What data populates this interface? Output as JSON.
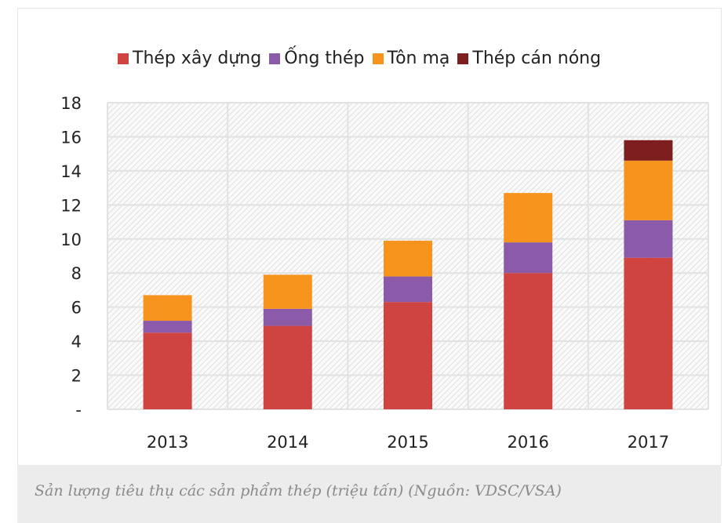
{
  "chart_data": {
    "type": "bar",
    "stacked": true,
    "categories": [
      "2013",
      "2014",
      "2015",
      "2016",
      "2017"
    ],
    "series": [
      {
        "name": "Thép xây dựng",
        "color": "#cf4441",
        "values": [
          4.5,
          4.9,
          6.3,
          8.0,
          8.9
        ]
      },
      {
        "name": "Ống thép",
        "color": "#8b5aa8",
        "values": [
          0.7,
          1.0,
          1.5,
          1.8,
          2.2
        ]
      },
      {
        "name": "Tôn mạ",
        "color": "#f7941d",
        "values": [
          1.5,
          2.0,
          2.1,
          2.9,
          3.5
        ]
      },
      {
        "name": "Thép cán nóng",
        "color": "#7e1f1f",
        "values": [
          0,
          0,
          0,
          0,
          1.2
        ]
      }
    ],
    "y_ticks": [
      "-",
      "2",
      "4",
      "6",
      "8",
      "10",
      "12",
      "14",
      "16",
      "18"
    ],
    "ylim": [
      0,
      18
    ],
    "grid": true,
    "legend_position": "top",
    "xlabel": "",
    "ylabel": ""
  },
  "caption": "Sản lượng tiêu thụ các sản phẩm thép (triệu tấn) (Nguồn: VDSC/VSA)"
}
